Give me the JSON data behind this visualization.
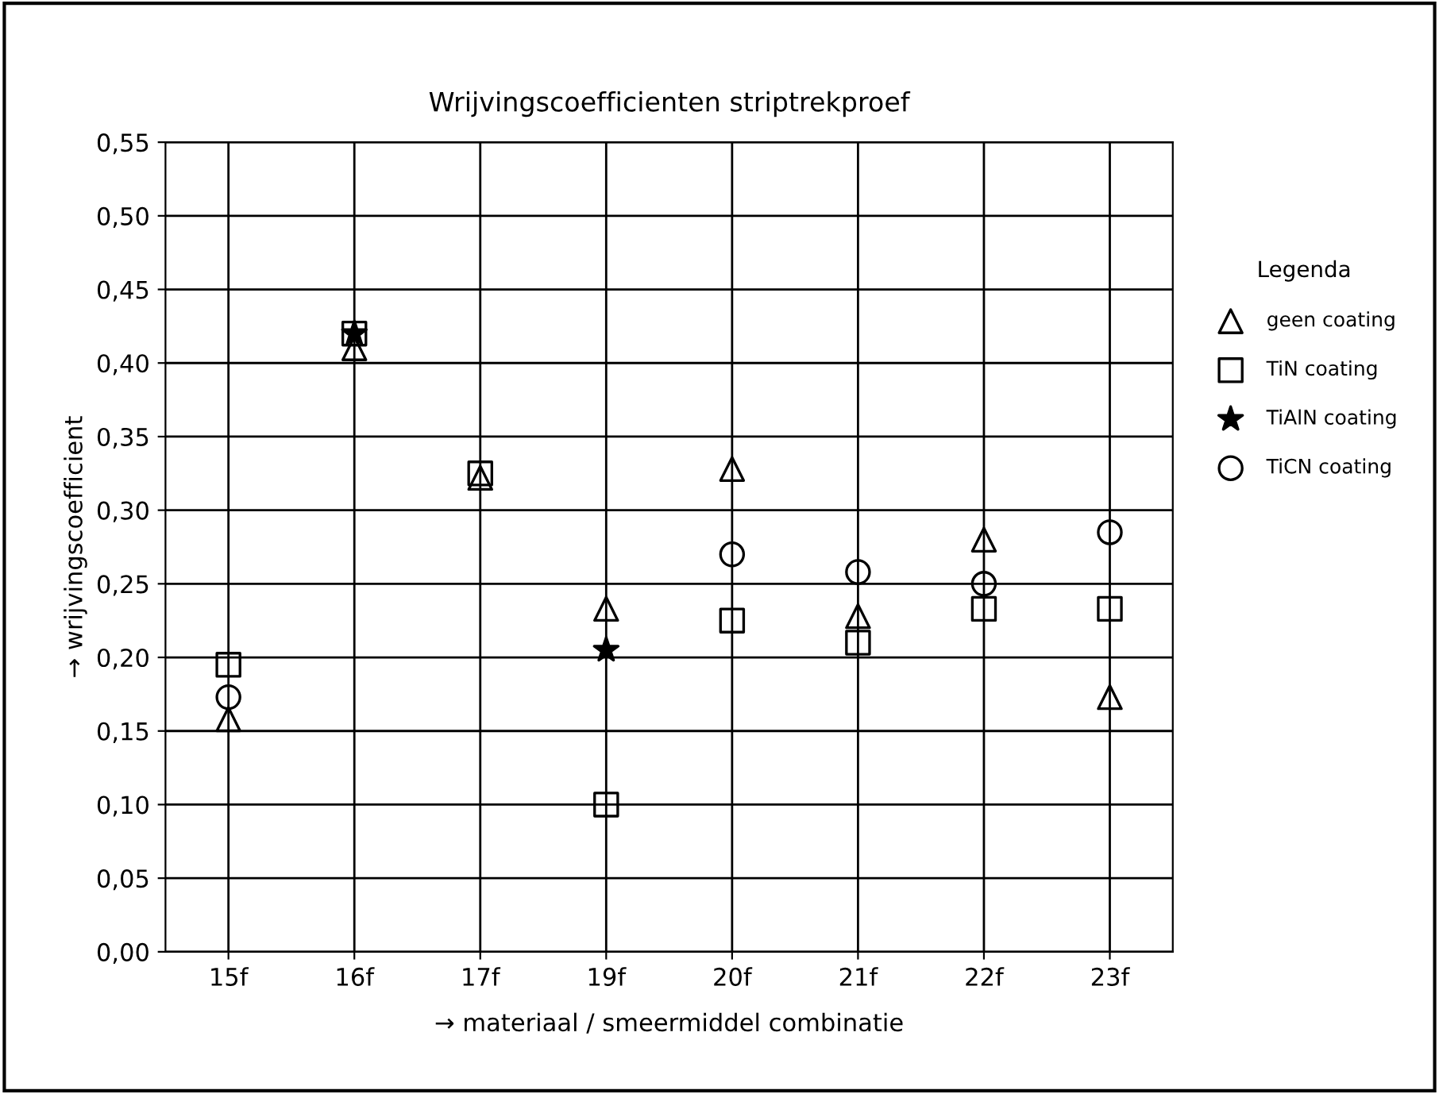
{
  "chart_data": {
    "type": "scatter",
    "title": "Wrijvingscoefficienten striptrekproef",
    "xlabel": "→ materiaal / smeermiddel combinatie",
    "ylabel": "→ wrijvingscoefficient",
    "legend_title": "Legenda",
    "categories": [
      "15f",
      "16f",
      "17f",
      "19f",
      "20f",
      "21f",
      "22f",
      "23f"
    ],
    "series": [
      {
        "name": "geen coating",
        "color": "#000000",
        "marker": "triangle",
        "values": [
          0.158,
          0.41,
          0.322,
          0.233,
          0.328,
          0.228,
          0.28,
          0.173
        ]
      },
      {
        "name": "TiN coating",
        "color": "#000000",
        "marker": "square",
        "values": [
          0.195,
          0.42,
          0.325,
          0.1,
          0.225,
          0.21,
          0.233,
          0.233
        ]
      },
      {
        "name": "TiAlN coating",
        "color": "#000000",
        "marker": "star",
        "values": [
          null,
          0.42,
          null,
          0.205,
          null,
          null,
          null,
          null
        ]
      },
      {
        "name": "TiCN coating",
        "color": "#000000",
        "marker": "circle",
        "values": [
          0.173,
          null,
          null,
          null,
          0.27,
          0.258,
          0.25,
          0.285
        ]
      }
    ],
    "ylim": [
      0,
      0.55
    ],
    "yticks": [
      {
        "value": 0,
        "label": "0,00"
      },
      {
        "value": 0.05,
        "label": "0,05"
      },
      {
        "value": 0.1,
        "label": "0,10"
      },
      {
        "value": 0.15,
        "label": "0,15"
      },
      {
        "value": 0.2,
        "label": "0,20"
      },
      {
        "value": 0.25,
        "label": "0,25"
      },
      {
        "value": 0.3,
        "label": "0,30"
      },
      {
        "value": 0.35,
        "label": "0,35"
      },
      {
        "value": 0.4,
        "label": "0,40"
      },
      {
        "value": 0.45,
        "label": "0,45"
      },
      {
        "value": 0.5,
        "label": "0,50"
      },
      {
        "value": 0.55,
        "label": "0,55"
      }
    ],
    "grid": true,
    "legend": "right"
  }
}
